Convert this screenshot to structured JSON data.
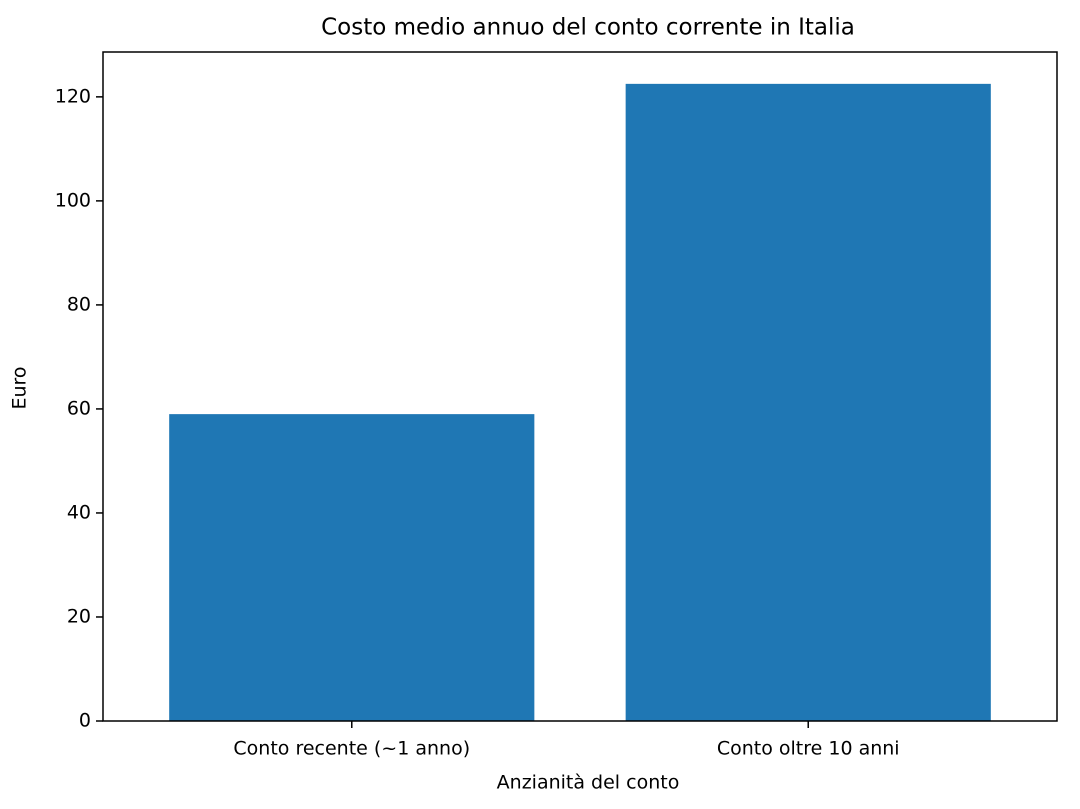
{
  "chart_data": {
    "type": "bar",
    "title": "Costo medio annuo del conto corrente in Italia",
    "x_label": "Anzianità del conto",
    "y_label": "Euro",
    "categories": [
      "Conto recente (~1 anno)",
      "Conto oltre 10 anni"
    ],
    "values": [
      59,
      122.5
    ],
    "color": "#1f77b4",
    "ylim": [
      0,
      128.625
    ],
    "yticks": [
      0,
      20,
      40,
      60,
      80,
      100,
      120
    ],
    "grid": false
  }
}
